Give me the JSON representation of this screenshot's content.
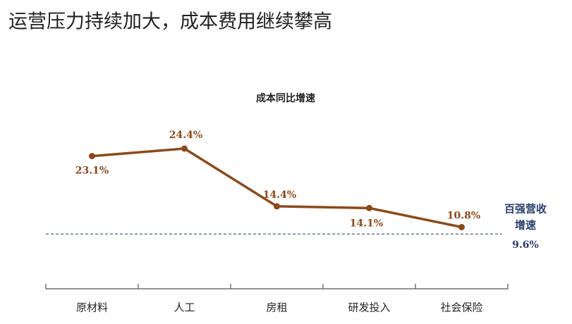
{
  "page_title": "运营压力持续加大，成本费用继续攀高",
  "chart_data": {
    "type": "line",
    "title": "成本同比增速",
    "categories": [
      "原材料",
      "人工",
      "房租",
      "研发投入",
      "社会保险"
    ],
    "values": [
      23.1,
      24.4,
      14.4,
      14.1,
      10.8
    ],
    "value_labels": [
      "23.1%",
      "24.4%",
      "14.4%",
      "14.1%",
      "10.8%"
    ],
    "color": "#8b4a1c",
    "reference": {
      "label": [
        "百强营收",
        "增速"
      ],
      "value": 9.6,
      "value_label": "9.6%",
      "color": "#4a6484"
    }
  }
}
